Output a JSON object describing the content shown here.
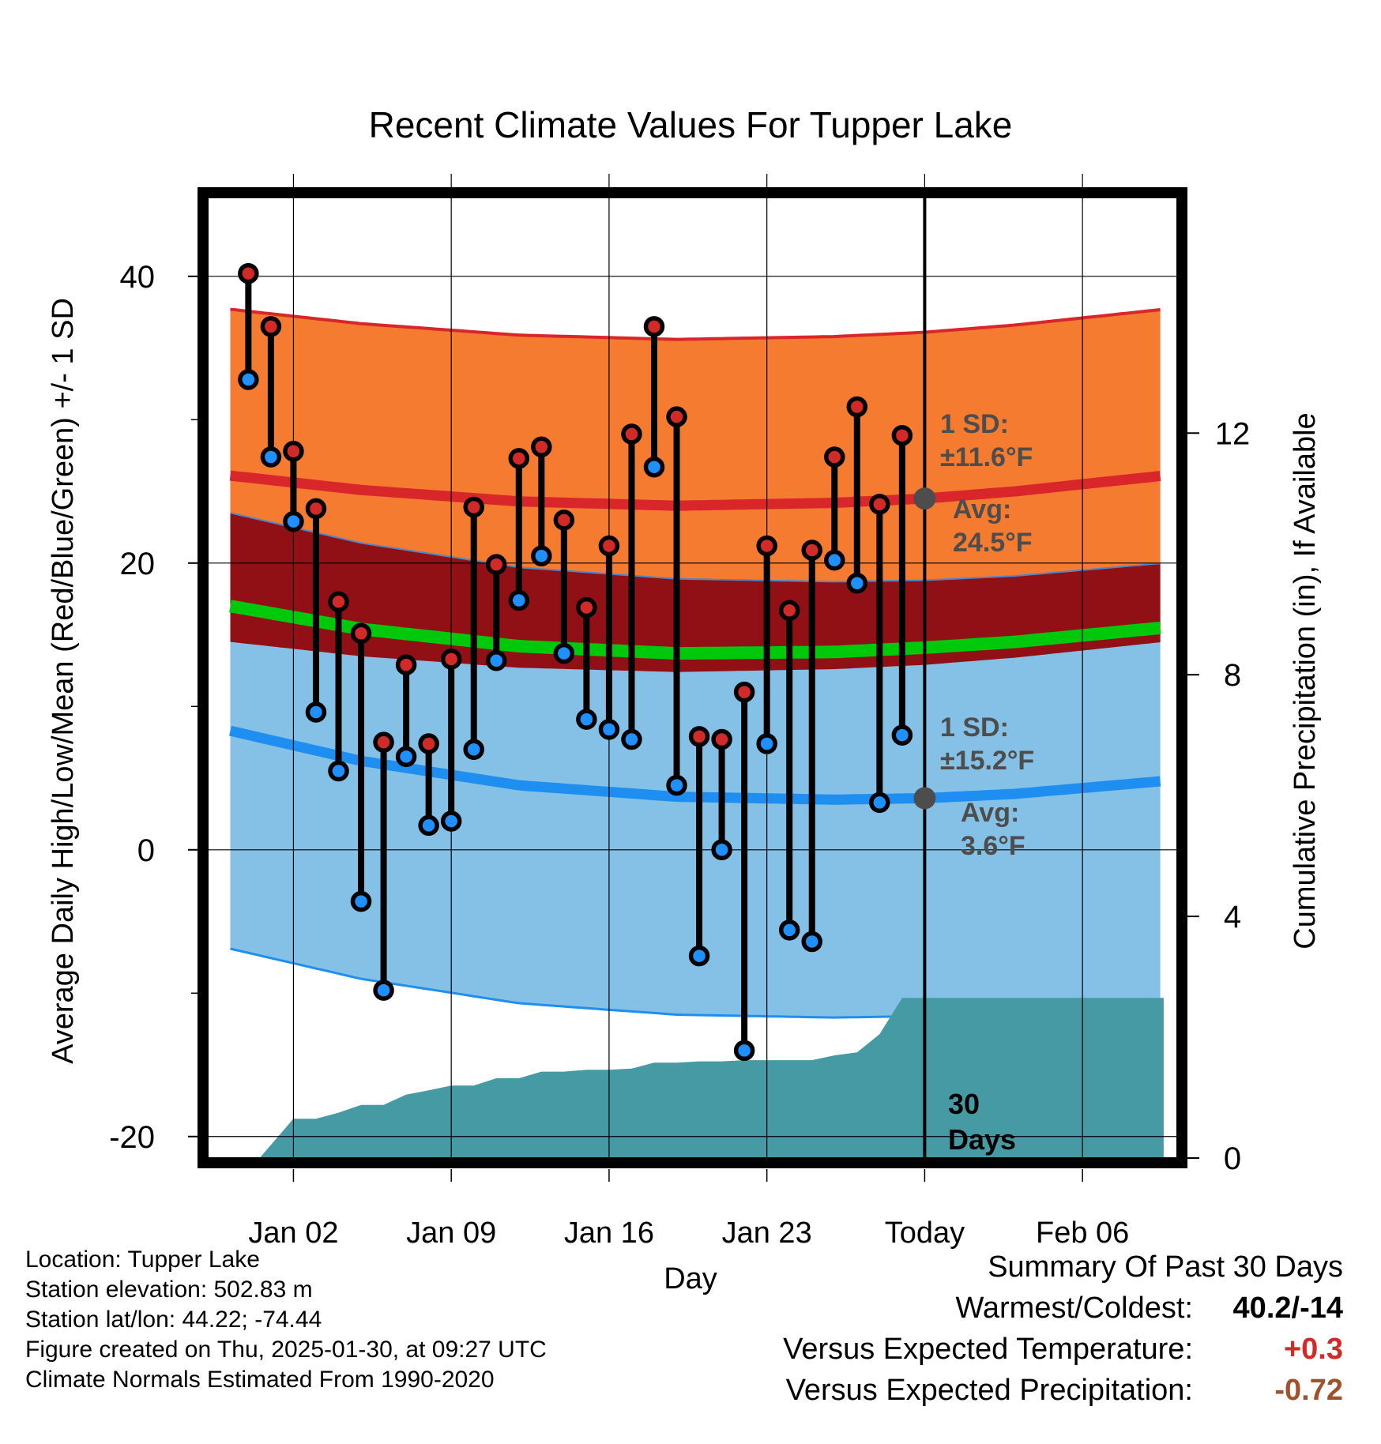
{
  "title": "Recent Climate Values For Tupper Lake",
  "chart_data": {
    "type": "line",
    "title": "Recent Climate Values For Tupper Lake",
    "xlabel": "Day",
    "ylabel": "Average Daily High/Low/Mean (Red/Blue/Green) +/- 1 SD",
    "y2label": "Cumulative Precipitation (in), If Available",
    "ylim": [
      -21.5,
      45.5
    ],
    "y2lim": [
      0,
      15.9
    ],
    "xlim": [
      -3.8,
      39.2
    ],
    "x_ticks": [
      {
        "x": 0,
        "label": "Jan 02"
      },
      {
        "x": 7,
        "label": "Jan 09"
      },
      {
        "x": 14,
        "label": "Jan 16"
      },
      {
        "x": 21,
        "label": "Jan 23"
      },
      {
        "x": 28,
        "label": "Today"
      },
      {
        "x": 35,
        "label": "Feb 06"
      }
    ],
    "y_ticks": [
      -20,
      0,
      20,
      40
    ],
    "y_minor_ticks": [
      -10,
      10,
      30
    ],
    "y2_ticks": [
      0,
      4,
      8,
      12
    ],
    "today_x": 28,
    "window_label": [
      "30",
      "Days"
    ],
    "daily_high": [
      [
        -2,
        40.2
      ],
      [
        -1,
        36.5
      ],
      [
        0,
        27.8
      ],
      [
        1,
        23.8
      ],
      [
        2,
        17.3
      ],
      [
        3,
        15.1
      ],
      [
        4,
        7.5
      ],
      [
        5,
        12.9
      ],
      [
        6,
        7.4
      ],
      [
        7,
        13.3
      ],
      [
        8,
        23.9
      ],
      [
        9,
        19.9
      ],
      [
        10,
        27.3
      ],
      [
        11,
        28.1
      ],
      [
        12,
        23.0
      ],
      [
        13,
        16.9
      ],
      [
        14,
        21.2
      ],
      [
        15,
        29.0
      ],
      [
        16,
        36.5
      ],
      [
        17,
        30.2
      ],
      [
        18,
        7.9
      ],
      [
        19,
        7.7
      ],
      [
        20,
        11.0
      ],
      [
        21,
        21.2
      ],
      [
        22,
        16.7
      ],
      [
        23,
        20.9
      ],
      [
        24,
        27.4
      ],
      [
        25,
        30.9
      ],
      [
        26,
        24.1
      ],
      [
        27,
        28.9
      ]
    ],
    "daily_low": [
      [
        -2,
        32.8
      ],
      [
        -1,
        27.4
      ],
      [
        0,
        22.9
      ],
      [
        1,
        9.6
      ],
      [
        2,
        5.5
      ],
      [
        3,
        -3.6
      ],
      [
        4,
        -9.8
      ],
      [
        5,
        6.5
      ],
      [
        6,
        1.7
      ],
      [
        7,
        2.0
      ],
      [
        8,
        7.0
      ],
      [
        9,
        13.2
      ],
      [
        10,
        17.4
      ],
      [
        11,
        20.5
      ],
      [
        12,
        13.7
      ],
      [
        13,
        9.1
      ],
      [
        14,
        8.4
      ],
      [
        15,
        7.7
      ],
      [
        16,
        26.7
      ],
      [
        17,
        4.5
      ],
      [
        18,
        -7.4
      ],
      [
        19,
        0.0
      ],
      [
        20,
        -14.0
      ],
      [
        21,
        7.4
      ],
      [
        22,
        -5.6
      ],
      [
        23,
        -6.4
      ],
      [
        24,
        20.2
      ],
      [
        25,
        18.6
      ],
      [
        26,
        3.3
      ],
      [
        27,
        8.0
      ]
    ],
    "normal_high_mean": [
      [
        -2.8,
        26.1
      ],
      [
        3,
        25.1
      ],
      [
        10,
        24.3
      ],
      [
        17,
        24.0
      ],
      [
        24,
        24.2
      ],
      [
        28,
        24.5
      ],
      [
        32,
        25.0
      ],
      [
        38.6,
        26.1
      ]
    ],
    "normal_high_sd": 11.6,
    "normal_low_mean": [
      [
        -2.8,
        8.3
      ],
      [
        3,
        6.2
      ],
      [
        10,
        4.5
      ],
      [
        17,
        3.7
      ],
      [
        24,
        3.5
      ],
      [
        28,
        3.6
      ],
      [
        32,
        3.9
      ],
      [
        38.6,
        4.8
      ]
    ],
    "normal_low_sd": 15.2,
    "normal_mean": [
      [
        -2.8,
        17.0
      ],
      [
        3,
        15.4
      ],
      [
        10,
        14.2
      ],
      [
        17,
        13.7
      ],
      [
        24,
        13.8
      ],
      [
        28,
        14.1
      ],
      [
        32,
        14.5
      ],
      [
        38.6,
        15.5
      ]
    ],
    "precip_cumulative": [
      [
        -2.6,
        0.0
      ],
      [
        -1.5,
        0.0
      ],
      [
        0,
        0.65
      ],
      [
        1,
        0.65
      ],
      [
        2,
        0.75
      ],
      [
        3,
        0.88
      ],
      [
        4,
        0.88
      ],
      [
        5,
        1.05
      ],
      [
        6,
        1.12
      ],
      [
        7,
        1.2
      ],
      [
        8,
        1.2
      ],
      [
        9,
        1.32
      ],
      [
        10,
        1.32
      ],
      [
        11,
        1.43
      ],
      [
        12,
        1.43
      ],
      [
        13,
        1.46
      ],
      [
        14,
        1.46
      ],
      [
        15,
        1.48
      ],
      [
        16,
        1.58
      ],
      [
        17,
        1.58
      ],
      [
        18,
        1.6
      ],
      [
        19,
        1.6
      ],
      [
        20,
        1.62
      ],
      [
        21,
        1.62
      ],
      [
        22,
        1.62
      ],
      [
        23,
        1.62
      ],
      [
        24,
        1.7
      ],
      [
        25,
        1.75
      ],
      [
        26,
        2.05
      ],
      [
        27,
        2.65
      ],
      [
        28,
        2.65
      ],
      [
        38.6,
        2.65
      ]
    ],
    "annotations": {
      "high": {
        "sd_label": "1 SD:",
        "sd_value": "±11.6°F",
        "avg_label": "Avg:",
        "avg_value": "24.5°F",
        "avg": 24.5
      },
      "low": {
        "sd_label": "1 SD:",
        "sd_value": "±15.2°F",
        "avg_label": "Avg:",
        "avg_value": "3.6°F",
        "avg": 3.6
      }
    }
  },
  "colors": {
    "high_band": "#f47b2f",
    "high_mean": "#d9262a",
    "overlap_band": "#911015",
    "low_band": "#85c1e6",
    "low_mean": "#1e8ff0",
    "mean_line": "#00c80a",
    "precip": "#469aa4",
    "high_dot": "#d22a28",
    "low_dot": "#1e90ff",
    "annotation": "#4d4d4d"
  },
  "footer": {
    "location": "Location: Tupper Lake",
    "elevation": "Station elevation: 502.83 m",
    "latlon": "Station lat/lon: 44.22; -74.44",
    "created": "Figure created on Thu, 2025-01-30, at 09:27 UTC",
    "normals": "Climate Normals Estimated From 1990-2020"
  },
  "summary": {
    "title": "Summary Of Past 30 Days",
    "warmest_coldest_label": "Warmest/Coldest:",
    "warmest_coldest_value": "40.2/-14",
    "temp_label": "Versus Expected Temperature:",
    "temp_value": "+0.3",
    "precip_label": "Versus Expected Precipitation:",
    "precip_value": "-0.72"
  }
}
